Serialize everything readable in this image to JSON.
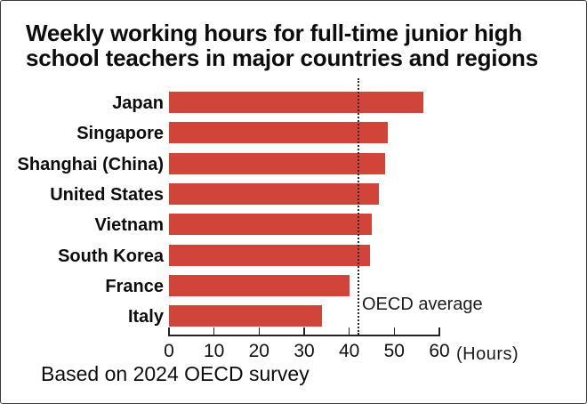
{
  "title": "Weekly working hours for full-time junior high\nschool teachers in major countries and regions",
  "caption": "Based on 2024 OECD survey",
  "colors": {
    "bar": "#d0443a",
    "axis": "#222222",
    "text": "#0d0d0d",
    "reference_line": "#2b2b2b"
  },
  "chart_data": {
    "type": "bar",
    "orientation": "horizontal",
    "title": "Weekly working hours for full-time junior high school teachers in major countries and regions",
    "categories": [
      "Japan",
      "Singapore",
      "Shanghai (China)",
      "United States",
      "Vietnam",
      "South Korea",
      "France",
      "Italy"
    ],
    "values": [
      56.5,
      48.5,
      48,
      46.5,
      45,
      44.5,
      40,
      34
    ],
    "unit_label": "(Hours)",
    "xlabel": "(Hours)",
    "xlim": [
      0,
      60
    ],
    "x_ticks": [
      0,
      10,
      20,
      30,
      40,
      50,
      60
    ],
    "grid": false,
    "reference_line": {
      "label": "OECD average",
      "value": 42
    },
    "source_note": "Based on 2024 OECD survey"
  }
}
